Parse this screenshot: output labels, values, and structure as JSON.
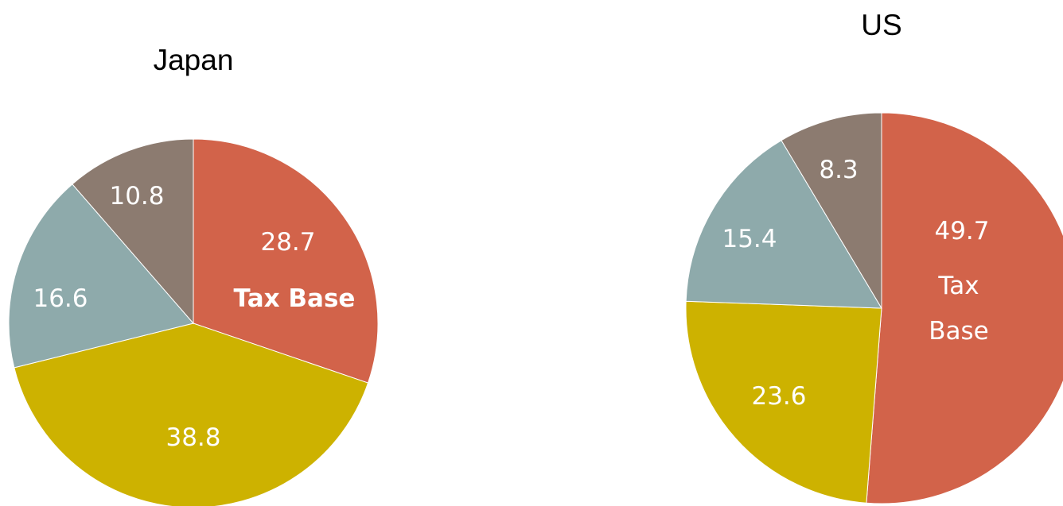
{
  "chart_data": [
    {
      "type": "pie",
      "title": "Japan",
      "slices": [
        {
          "label": "28.7",
          "value": 28.7,
          "sublabel": "Tax Base",
          "sublabel_bold": true,
          "color": "#d2634a"
        },
        {
          "label": "38.8",
          "value": 38.8,
          "color": "#cdb200"
        },
        {
          "label": "16.6",
          "value": 16.6,
          "color": "#8eaaab"
        },
        {
          "label": "10.8",
          "value": 10.8,
          "color": "#8c7b70"
        }
      ]
    },
    {
      "type": "pie",
      "title": "US",
      "slices": [
        {
          "label": "49.7",
          "value": 49.7,
          "sublabel": "Tax\nBase",
          "sublabel_bold": false,
          "color": "#d2634a"
        },
        {
          "label": "23.6",
          "value": 23.6,
          "color": "#cdb200"
        },
        {
          "label": "15.4",
          "value": 15.4,
          "color": "#8eaaab"
        },
        {
          "label": "8.3",
          "value": 8.3,
          "color": "#8c7b70"
        }
      ]
    }
  ]
}
